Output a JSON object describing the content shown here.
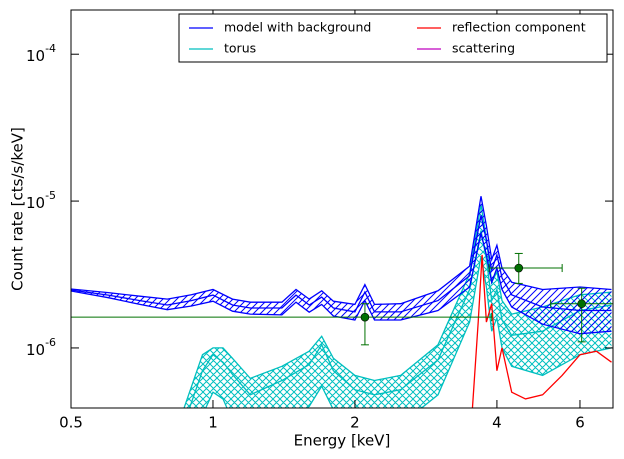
{
  "chart_data": {
    "type": "line",
    "xlabel": "Energy [keV]",
    "ylabel": "Count rate [cts/s/keV]",
    "xscale": "log",
    "yscale": "log",
    "xlim": [
      0.5,
      7.05
    ],
    "ylim": [
      3.9e-07,
      0.0002
    ],
    "xticks": [
      0.5,
      1,
      2,
      4,
      6
    ],
    "yticks": [
      {
        "value": 1e-06,
        "label": "10",
        "exponent": "-6"
      },
      {
        "value": 1e-05,
        "label": "10",
        "exponent": "-5"
      },
      {
        "value": 0.0001,
        "label": "10",
        "exponent": "-4"
      }
    ],
    "legend": "upper right",
    "series": [
      {
        "name": "torus",
        "color": "#00bfbf",
        "hatch": "cross",
        "x": [
          0.85,
          0.95,
          1.0,
          1.05,
          1.1,
          1.2,
          1.4,
          1.6,
          1.7,
          1.8,
          2.0,
          2.2,
          2.5,
          3.0,
          3.5,
          3.7,
          3.8,
          3.9,
          4.0,
          4.1,
          4.3,
          5.0,
          6.0,
          7.0
        ],
        "values": [
          2.5e-07,
          7e-07,
          9e-07,
          8e-07,
          6.6e-07,
          4.8e-07,
          6e-07,
          7.7e-07,
          1.05e-06,
          7e-07,
          5.2e-07,
          4.8e-07,
          5.2e-07,
          8.3e-07,
          2.5e-06,
          6.3e-06,
          4e-06,
          2.1e-06,
          2.5e-06,
          1.55e-06,
          1.22e-06,
          1.3e-06,
          1.8e-06,
          1.96e-06
        ],
        "upper": [
          3.2e-07,
          9e-07,
          1e-06,
          1e-06,
          8.5e-07,
          6.2e-07,
          7.5e-07,
          9.5e-07,
          1.2e-06,
          8.5e-07,
          6.5e-07,
          6e-07,
          6.5e-07,
          1.05e-06,
          3.2e-06,
          9.5e-06,
          5.5e-06,
          2.8e-06,
          3.3e-06,
          2.1e-06,
          1.7e-06,
          1.9e-06,
          2.3e-06,
          2.4e-06
        ],
        "lower": [
          1.5e-07,
          3.5e-07,
          5e-07,
          4.5e-07,
          3.2e-07,
          2.5e-07,
          3e-07,
          4e-07,
          5.5e-07,
          3.8e-07,
          3e-07,
          2.7e-07,
          3e-07,
          4.8e-07,
          1.5e-06,
          4.2e-06,
          2.6e-06,
          1.3e-06,
          1.6e-06,
          1e-06,
          7.5e-07,
          6.5e-07,
          9e-07,
          1e-06
        ]
      },
      {
        "name": "reflection component",
        "color": "#ff0000",
        "x": [
          3.5,
          3.65,
          3.72,
          3.8,
          3.9,
          4.0,
          4.1,
          4.3,
          4.6,
          5.0,
          5.5,
          6.0,
          6.5,
          7.0
        ],
        "values": [
          2e-07,
          1.5e-06,
          4.3e-06,
          1.5e-06,
          2e-06,
          7e-07,
          1e-06,
          5e-07,
          4.5e-07,
          4.8e-07,
          6.5e-07,
          9e-07,
          9.5e-07,
          8e-07
        ]
      },
      {
        "name": "model with background",
        "color": "#0000ff",
        "hatch": "diag",
        "x": [
          0.5,
          0.6,
          0.7,
          0.8,
          0.9,
          1.0,
          1.1,
          1.2,
          1.4,
          1.5,
          1.6,
          1.7,
          1.8,
          2.0,
          2.1,
          2.2,
          2.5,
          3.0,
          3.5,
          3.7,
          3.8,
          3.9,
          4.0,
          4.1,
          4.3,
          5.0,
          6.0,
          7.0
        ],
        "values": [
          2.48e-06,
          2.29e-06,
          2.1e-06,
          1.96e-06,
          2.1e-06,
          2.29e-06,
          1.96e-06,
          1.87e-06,
          1.87e-06,
          2.29e-06,
          1.96e-06,
          2.22e-06,
          1.87e-06,
          1.76e-06,
          2.4e-06,
          1.76e-06,
          1.76e-06,
          2.1e-06,
          3.1e-06,
          8e-06,
          5.4e-06,
          3.4e-06,
          4.3e-06,
          3e-06,
          2.3e-06,
          1.9e-06,
          1.8e-06,
          1.8e-06
        ],
        "upper": [
          2.52e-06,
          2.38e-06,
          2.25e-06,
          2.15e-06,
          2.3e-06,
          2.5e-06,
          2.15e-06,
          2.05e-06,
          2.05e-06,
          2.5e-06,
          2.15e-06,
          2.45e-06,
          2.08e-06,
          1.98e-06,
          2.7e-06,
          1.98e-06,
          2e-06,
          2.45e-06,
          3.6e-06,
          1.08e-05,
          6.8e-06,
          4e-06,
          5e-06,
          3.5e-06,
          2.8e-06,
          2.5e-06,
          2.6e-06,
          2.5e-06
        ],
        "lower": [
          2.44e-06,
          2.2e-06,
          1.98e-06,
          1.82e-06,
          1.93e-06,
          2.08e-06,
          1.78e-06,
          1.7e-06,
          1.68e-06,
          2.05e-06,
          1.75e-06,
          1.98e-06,
          1.65e-06,
          1.55e-06,
          2.1e-06,
          1.55e-06,
          1.55e-06,
          1.8e-06,
          2.6e-06,
          6e-06,
          4.3e-06,
          2.8e-06,
          3.5e-06,
          2.5e-06,
          1.9e-06,
          1.45e-06,
          1.25e-06,
          1.3e-06
        ]
      },
      {
        "name": "scattering",
        "color": "#bf00bf"
      }
    ],
    "points": {
      "color": "#007000",
      "x": [
        2.1,
        4.45,
        6.05
      ],
      "values": [
        1.62e-06,
        3.5e-06,
        2e-06
      ],
      "xlow": [
        0.5,
        3.85,
        5.2
      ],
      "xhigh": [
        3.9,
        5.5,
        7.05
      ],
      "ylow": [
        1.05e-06,
        2.75e-06,
        1.1e-06
      ],
      "yhigh": [
        2e-06,
        4.4e-06,
        2.55e-06
      ]
    }
  }
}
